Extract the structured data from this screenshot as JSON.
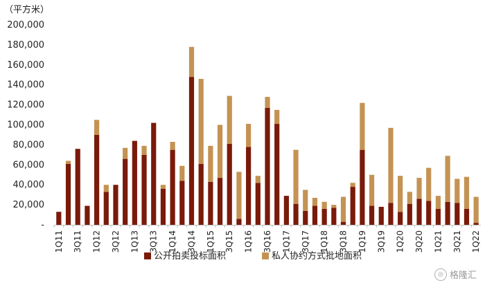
{
  "chart_data": {
    "type": "bar",
    "stacked": true,
    "unit_label": "（平方米）",
    "categories": [
      "1Q11",
      "2Q11",
      "3Q11",
      "4Q11",
      "1Q12",
      "2Q12",
      "3Q12",
      "4Q12",
      "1Q13",
      "2Q13",
      "3Q13",
      "4Q13",
      "1Q14",
      "2Q14",
      "3Q14",
      "4Q14",
      "1Q15",
      "2Q15",
      "3Q15",
      "4Q15",
      "1Q16",
      "2Q16",
      "3Q16",
      "4Q16",
      "1Q17",
      "2Q17",
      "3Q17",
      "4Q17",
      "1Q18",
      "2Q18",
      "3Q18",
      "4Q18",
      "1Q19",
      "2Q19",
      "3Q19",
      "4Q19",
      "1Q20",
      "2Q20",
      "3Q20",
      "4Q20",
      "1Q21",
      "2Q21",
      "3Q21",
      "4Q21",
      "1Q22"
    ],
    "x_tick_labels": [
      "1Q11",
      "",
      "3Q11",
      "",
      "1Q12",
      "",
      "3Q12",
      "",
      "1Q13",
      "",
      "3Q13",
      "",
      "1Q14",
      "",
      "3Q14",
      "",
      "1Q15",
      "",
      "3Q15",
      "",
      "1Q16",
      "",
      "3Q16",
      "",
      "1Q17",
      "",
      "3Q17",
      "",
      "1Q18",
      "",
      "3Q18",
      "",
      "1Q19",
      "",
      "3Q19",
      "",
      "1Q20",
      "",
      "3Q20",
      "",
      "1Q21",
      "",
      "3Q21",
      "",
      "1Q22"
    ],
    "series": [
      {
        "name": "公开拍卖投标面积",
        "color": "#7a1a0a",
        "values": [
          13000,
          61000,
          76000,
          19000,
          90000,
          33000,
          40000,
          66000,
          84000,
          70000,
          102000,
          36000,
          75000,
          44000,
          148000,
          61000,
          43000,
          47000,
          81000,
          6000,
          78000,
          42000,
          117000,
          101000,
          29000,
          21000,
          14000,
          19000,
          16000,
          17000,
          3000,
          38000,
          75000,
          19000,
          18000,
          22000,
          13000,
          21000,
          26000,
          24000,
          16000,
          23000,
          22000,
          16000,
          2000
        ]
      },
      {
        "name": "私人协约方式批地面积",
        "color": "#c49353",
        "values": [
          0,
          3000,
          0,
          0,
          15000,
          7000,
          0,
          11000,
          0,
          9000,
          0,
          4000,
          8000,
          15000,
          30000,
          85000,
          36000,
          53000,
          48000,
          47000,
          23000,
          7000,
          11000,
          14000,
          0,
          54000,
          21000,
          8000,
          7000,
          3000,
          25000,
          4000,
          47000,
          31000,
          0,
          75000,
          36000,
          12000,
          21000,
          33000,
          13000,
          46000,
          24000,
          32000,
          26000
        ]
      }
    ],
    "y_tick_labels": [
      "-",
      "20,000",
      "40,000",
      "60,000",
      "80,000",
      "100,000",
      "120,000",
      "140,000",
      "160,000",
      "180,000",
      "200,000"
    ],
    "ylim": [
      0,
      200000
    ],
    "legend_position": "bottom",
    "grid": false
  },
  "watermark": {
    "text": "格隆汇",
    "icon": "watermark-logo-icon"
  }
}
